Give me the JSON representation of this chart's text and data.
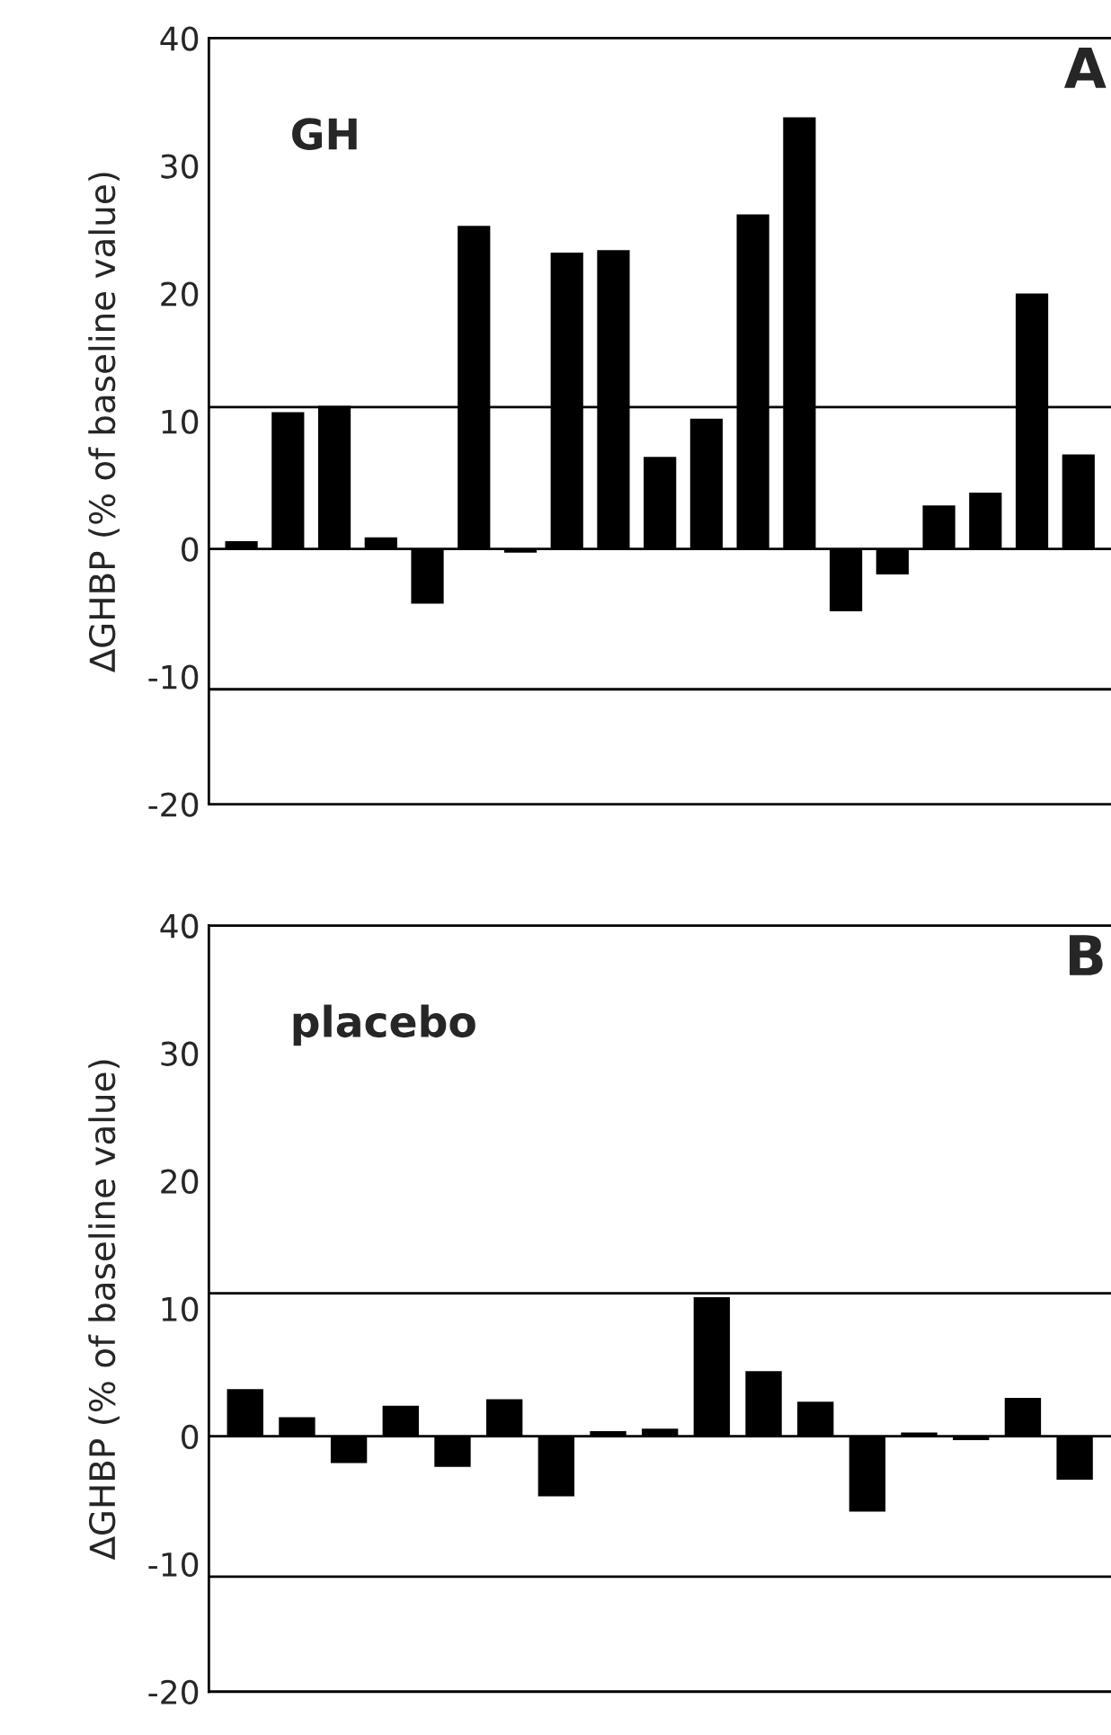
{
  "chart_data": [
    {
      "type": "bar",
      "ylabel": "∆GHBP (% of baseline value)",
      "annotations": [
        "GH",
        "A"
      ],
      "categories": [
        null,
        null,
        null,
        null,
        null,
        null,
        null,
        null,
        null,
        null,
        null,
        null,
        null,
        null,
        null,
        null,
        null,
        null,
        null
      ],
      "values": [
        0.6,
        10.7,
        11.2,
        0.9,
        -4.3,
        25.3,
        -0.3,
        23.2,
        23.4,
        7.2,
        10.2,
        26.2,
        33.8,
        -4.9,
        -2.0,
        3.4,
        4.4,
        20.0,
        7.4
      ],
      "color": "#000000",
      "ylim": [
        -20,
        40
      ],
      "yticks": [
        -20,
        -10,
        0,
        10,
        20,
        30,
        40
      ],
      "tick_labels": "y",
      "ref_lines": [
        {
          "axis": "y",
          "value": 11.1,
          "color": "#000000"
        },
        {
          "axis": "y",
          "value": 0,
          "color": "#000000"
        },
        {
          "axis": "y",
          "value": -11,
          "color": "#000000"
        }
      ]
    },
    {
      "type": "bar",
      "ylabel": "∆GHBP (% of baseline value)",
      "annotations": [
        "placebo",
        "B"
      ],
      "categories": [
        null,
        null,
        null,
        null,
        null,
        null,
        null,
        null,
        null,
        null,
        null,
        null,
        null,
        null,
        null,
        null,
        null
      ],
      "values": [
        3.7,
        1.5,
        -2.1,
        2.4,
        -2.4,
        2.9,
        -4.7,
        0.4,
        0.6,
        10.9,
        5.1,
        2.7,
        -5.9,
        0.3,
        -0.3,
        3.0,
        -3.4
      ],
      "color": "#000000",
      "ylim": [
        -20,
        40
      ],
      "yticks": [
        -20,
        -10,
        0,
        10,
        20,
        30,
        40
      ],
      "tick_labels": "y",
      "ref_lines": [
        {
          "axis": "y",
          "value": 11.2,
          "color": "#000000"
        },
        {
          "axis": "y",
          "value": 0,
          "color": "#000000"
        },
        {
          "axis": "y",
          "value": -11,
          "color": "#000000"
        }
      ]
    }
  ]
}
